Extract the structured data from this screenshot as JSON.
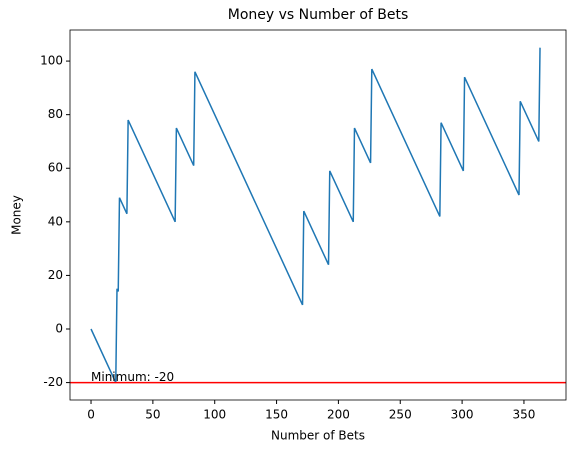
{
  "chart_data": {
    "type": "line",
    "title": "Money vs Number of Bets",
    "x_label": "Number of Bets",
    "y_label": "Money",
    "series": [
      {
        "name": "Money",
        "color": "#1f77b4",
        "x": [
          0,
          20,
          21,
          22,
          23,
          29,
          30,
          68,
          69,
          83,
          84,
          171,
          172,
          192,
          193,
          212,
          213,
          226,
          227,
          282,
          283,
          301,
          302,
          346,
          347,
          362,
          363
        ],
        "values": [
          0,
          -20,
          15,
          14,
          49,
          43,
          78,
          40,
          75,
          61,
          96,
          9,
          44,
          24,
          59,
          40,
          75,
          62,
          97,
          42,
          77,
          59,
          94,
          50,
          85,
          70,
          105
        ]
      }
    ],
    "hline": {
      "value": -20,
      "color": "#ff0000"
    },
    "annotation": {
      "text": "Minimum: -20",
      "x": 0,
      "y": -20
    },
    "xlim": [
      -17,
      384
    ],
    "ylim": [
      -26.5,
      111.6
    ],
    "xticks": [
      0,
      50,
      100,
      150,
      200,
      250,
      300,
      350
    ],
    "yticks": [
      -20,
      0,
      20,
      40,
      60,
      80,
      100
    ]
  }
}
